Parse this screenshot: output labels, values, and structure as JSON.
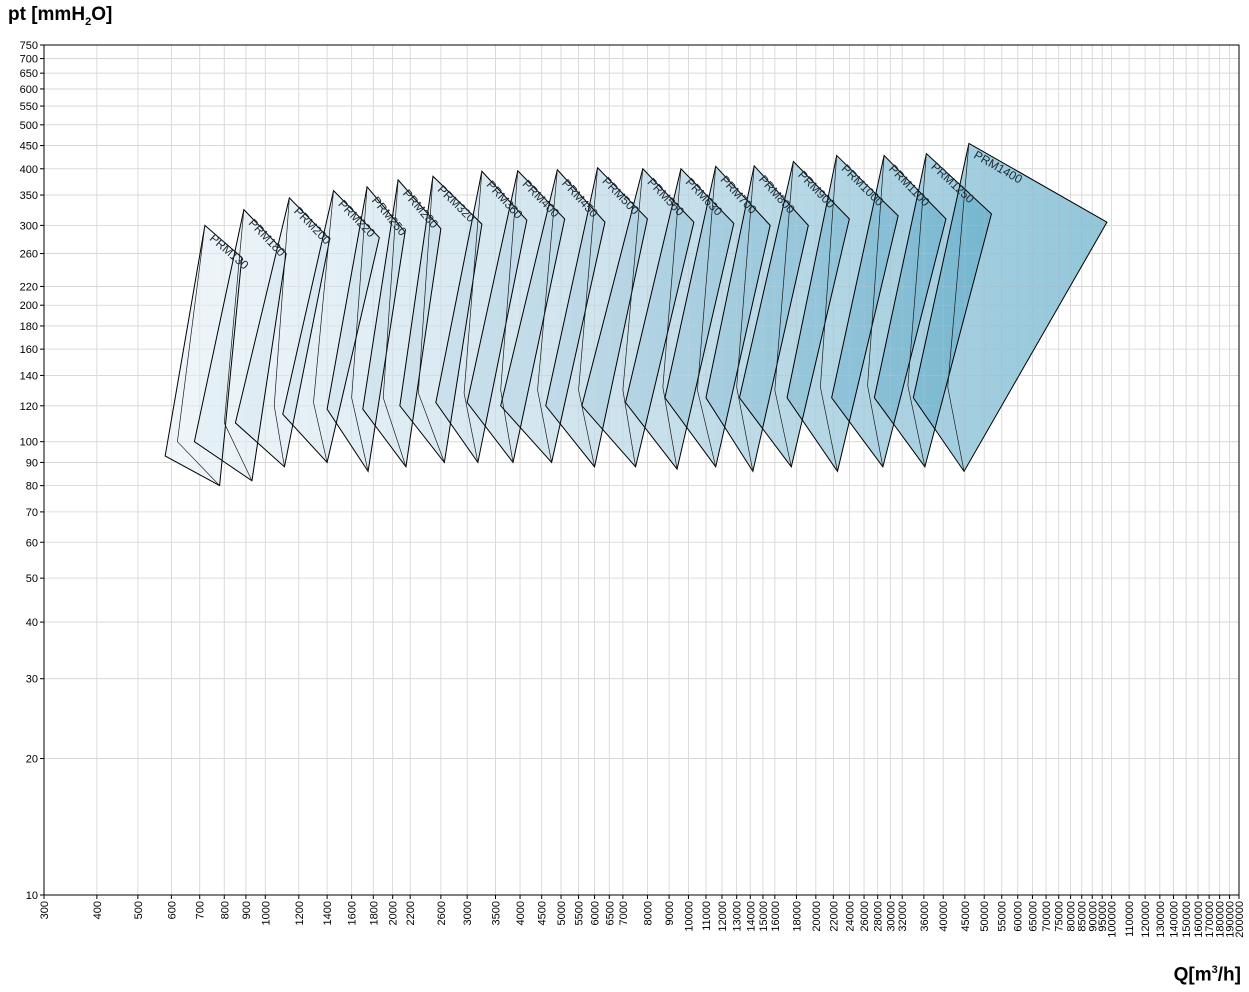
{
  "chart_data": {
    "type": "area",
    "y_axis_label": "pt [mmH",
    "y_axis_label_sub": "2",
    "y_axis_label_end": "O]",
    "x_axis_label": "Q[m",
    "x_axis_label_sup": "3",
    "x_axis_label_end": "/h]",
    "x_scale": "log",
    "y_scale": "log",
    "xlim": [
      300,
      200000
    ],
    "ylim": [
      10,
      750
    ],
    "grid": true,
    "x_ticks": [
      300,
      400,
      500,
      600,
      700,
      800,
      900,
      1000,
      1200,
      1400,
      1600,
      1800,
      2000,
      2200,
      2600,
      3000,
      3500,
      4000,
      4500,
      5000,
      5500,
      6000,
      6500,
      7000,
      8000,
      9000,
      10000,
      11000,
      12000,
      13000,
      14000,
      15000,
      16000,
      18000,
      20000,
      22000,
      24000,
      26000,
      28000,
      30000,
      32000,
      36000,
      40000,
      45000,
      50000,
      55000,
      60000,
      65000,
      70000,
      75000,
      80000,
      85000,
      90000,
      95000,
      100000,
      110000,
      120000,
      130000,
      140000,
      150000,
      160000,
      170000,
      180000,
      190000,
      200000
    ],
    "y_ticks": [
      10,
      20,
      30,
      40,
      50,
      60,
      70,
      80,
      90,
      100,
      120,
      140,
      160,
      180,
      200,
      220,
      260,
      300,
      350,
      400,
      450,
      500,
      550,
      600,
      650,
      700,
      750
    ],
    "series": [
      {
        "name": "PRM130",
        "top": [
          720,
          300
        ],
        "right": [
          880,
          255
        ],
        "bottom": [
          780,
          80
        ],
        "left": [
          580,
          93
        ],
        "inner": [
          [
            720,
            300
          ],
          [
            620,
            100
          ],
          [
            780,
            80
          ]
        ]
      },
      {
        "name": "PRM180",
        "top": [
          890,
          325
        ],
        "right": [
          1120,
          260
        ],
        "bottom": [
          930,
          82
        ],
        "left": [
          680,
          100
        ],
        "inner": [
          [
            890,
            325
          ],
          [
            800,
            110
          ],
          [
            930,
            82
          ]
        ]
      },
      {
        "name": "PRM200",
        "top": [
          1140,
          345
        ],
        "right": [
          1420,
          280
        ],
        "bottom": [
          1110,
          88
        ],
        "left": [
          850,
          110
        ],
        "inner": [
          [
            1140,
            345
          ],
          [
            1050,
            120
          ],
          [
            1110,
            88
          ]
        ]
      },
      {
        "name": "PRM220",
        "top": [
          1450,
          358
        ],
        "right": [
          1860,
          282
        ],
        "bottom": [
          1400,
          90
        ],
        "left": [
          1100,
          115
        ],
        "inner": [
          [
            1450,
            358
          ],
          [
            1300,
            122
          ],
          [
            1400,
            90
          ]
        ]
      },
      {
        "name": "PRM250",
        "top": [
          1740,
          365
        ],
        "right": [
          2140,
          290
        ],
        "bottom": [
          1750,
          86
        ],
        "left": [
          1400,
          118
        ],
        "inner": [
          [
            1740,
            365
          ],
          [
            1600,
            125
          ],
          [
            1750,
            86
          ]
        ]
      },
      {
        "name": "PRM280",
        "top": [
          2060,
          378
        ],
        "right": [
          2600,
          295
        ],
        "bottom": [
          2150,
          88
        ],
        "left": [
          1700,
          118
        ],
        "inner": [
          [
            2060,
            378
          ],
          [
            1900,
            125
          ],
          [
            2150,
            88
          ]
        ]
      },
      {
        "name": "PRM320",
        "top": [
          2490,
          385
        ],
        "right": [
          3250,
          302
        ],
        "bottom": [
          2650,
          90
        ],
        "left": [
          2080,
          120
        ],
        "inner": [
          [
            2490,
            385
          ],
          [
            2300,
            128
          ],
          [
            2650,
            90
          ]
        ]
      },
      {
        "name": "PRM360",
        "top": [
          3250,
          395
        ],
        "right": [
          4150,
          308
        ],
        "bottom": [
          3180,
          90
        ],
        "left": [
          2530,
          122
        ],
        "inner": [
          [
            3250,
            395
          ],
          [
            2950,
            128
          ],
          [
            3180,
            90
          ]
        ]
      },
      {
        "name": "PRM400",
        "top": [
          3950,
          396
        ],
        "right": [
          5100,
          310
        ],
        "bottom": [
          3850,
          90
        ],
        "left": [
          3000,
          122
        ],
        "inner": [
          [
            3950,
            396
          ],
          [
            3600,
            130
          ],
          [
            3850,
            90
          ]
        ]
      },
      {
        "name": "PRM450",
        "top": [
          4900,
          398
        ],
        "right": [
          6350,
          305
        ],
        "bottom": [
          4750,
          90
        ],
        "left": [
          3600,
          120
        ],
        "inner": [
          [
            4900,
            398
          ],
          [
            4400,
            130
          ],
          [
            4750,
            90
          ]
        ]
      },
      {
        "name": "PRM500",
        "top": [
          6100,
          402
        ],
        "right": [
          8000,
          310
        ],
        "bottom": [
          6000,
          88
        ],
        "left": [
          4600,
          120
        ],
        "inner": [
          [
            6100,
            402
          ],
          [
            5500,
            130
          ],
          [
            6000,
            88
          ]
        ]
      },
      {
        "name": "PRM560",
        "top": [
          7800,
          400
        ],
        "right": [
          10300,
          305
        ],
        "bottom": [
          7500,
          88
        ],
        "left": [
          5600,
          120
        ],
        "inner": [
          [
            7800,
            400
          ],
          [
            7000,
            130
          ],
          [
            7500,
            88
          ]
        ]
      },
      {
        "name": "PRM630",
        "top": [
          9600,
          400
        ],
        "right": [
          12800,
          303
        ],
        "bottom": [
          9400,
          87
        ],
        "left": [
          7100,
          122
        ],
        "inner": [
          [
            9600,
            400
          ],
          [
            8700,
            132
          ],
          [
            9400,
            87
          ]
        ]
      },
      {
        "name": "PRM700",
        "top": [
          11600,
          405
        ],
        "right": [
          15600,
          300
        ],
        "bottom": [
          11600,
          88
        ],
        "left": [
          8800,
          125
        ],
        "inner": [
          [
            11600,
            405
          ],
          [
            10500,
            130
          ],
          [
            11600,
            88
          ]
        ]
      },
      {
        "name": "PRM800",
        "top": [
          14300,
          406
        ],
        "right": [
          19200,
          300
        ],
        "bottom": [
          14200,
          86
        ],
        "left": [
          11000,
          125
        ],
        "inner": [
          [
            14300,
            406
          ],
          [
            13000,
            132
          ],
          [
            14200,
            86
          ]
        ]
      },
      {
        "name": "PRM900",
        "top": [
          17700,
          415
        ],
        "right": [
          24000,
          310
        ],
        "bottom": [
          17500,
          88
        ],
        "left": [
          13200,
          125
        ],
        "inner": [
          [
            17700,
            415
          ],
          [
            16000,
            130
          ],
          [
            17500,
            88
          ]
        ]
      },
      {
        "name": "PRM1000",
        "top": [
          22400,
          428
        ],
        "right": [
          31300,
          315
        ],
        "bottom": [
          22500,
          86
        ],
        "left": [
          17100,
          125
        ],
        "inner": [
          [
            22400,
            428
          ],
          [
            20500,
            132
          ],
          [
            22500,
            86
          ]
        ]
      },
      {
        "name": "PRM1100",
        "top": [
          29000,
          428
        ],
        "right": [
          40600,
          310
        ],
        "bottom": [
          28800,
          88
        ],
        "left": [
          21800,
          125
        ],
        "inner": [
          [
            29000,
            428
          ],
          [
            26500,
            133
          ],
          [
            28800,
            88
          ]
        ]
      },
      {
        "name": "PRM1250",
        "top": [
          36500,
          432
        ],
        "right": [
          52000,
          318
        ],
        "bottom": [
          36200,
          88
        ],
        "left": [
          27500,
          125
        ],
        "inner": [
          [
            36500,
            432
          ],
          [
            33000,
            133
          ],
          [
            36200,
            88
          ]
        ]
      },
      {
        "name": "PRM1400",
        "top": [
          46000,
          455
        ],
        "right": [
          97500,
          305
        ],
        "bottom": [
          44800,
          86
        ],
        "left": [
          34000,
          125
        ],
        "inner": [
          [
            46000,
            455
          ],
          [
            41000,
            132
          ],
          [
            44800,
            86
          ]
        ]
      }
    ]
  }
}
